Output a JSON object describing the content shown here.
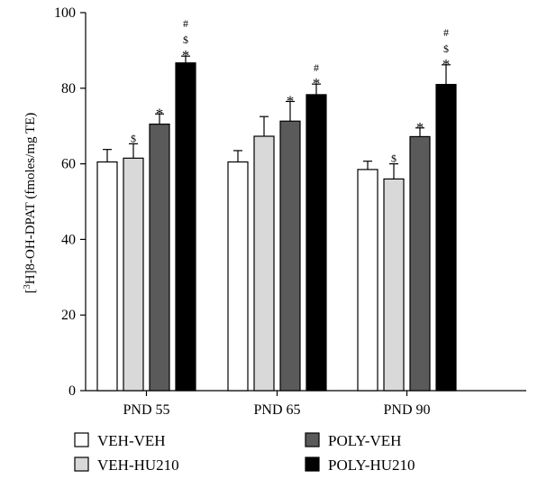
{
  "chart_data": {
    "type": "bar",
    "ylabel_parts": [
      "[",
      "3",
      "H]8-OH-DPAT (fmoles/mg TE)"
    ],
    "ylim": [
      0,
      100
    ],
    "yticks": [
      0,
      20,
      40,
      60,
      80,
      100
    ],
    "grid": false,
    "legend_position": "bottom",
    "categories": [
      "PND 55",
      "PND 65",
      "PND 90"
    ],
    "series": [
      {
        "name": "VEH-VEH",
        "color": "#ffffff",
        "values": [
          60.5,
          60.5,
          58.5
        ],
        "errors": [
          3.3,
          3.0,
          2.2
        ],
        "annotations": [
          [],
          [],
          []
        ]
      },
      {
        "name": "VEH-HU210",
        "color": "#d9d9d9",
        "values": [
          61.5,
          67.3,
          56.0
        ],
        "errors": [
          3.8,
          5.2,
          4.0
        ],
        "annotations": [
          [
            "$"
          ],
          [],
          [
            "$"
          ]
        ]
      },
      {
        "name": "POLY-VEH",
        "color": "#5a5a5a",
        "values": [
          70.5,
          71.3,
          67.2
        ],
        "errors": [
          2.7,
          5.2,
          2.3
        ],
        "annotations": [
          [
            "*"
          ],
          [
            "*"
          ],
          [
            "*"
          ]
        ]
      },
      {
        "name": "POLY-HU210",
        "color": "#000000",
        "values": [
          86.7,
          78.3,
          81.0
        ],
        "errors": [
          1.8,
          2.8,
          5.2
        ],
        "annotations": [
          [
            "*",
            "$",
            "#"
          ],
          [
            "*",
            "#"
          ],
          [
            "*",
            "$",
            "#"
          ]
        ]
      }
    ]
  }
}
